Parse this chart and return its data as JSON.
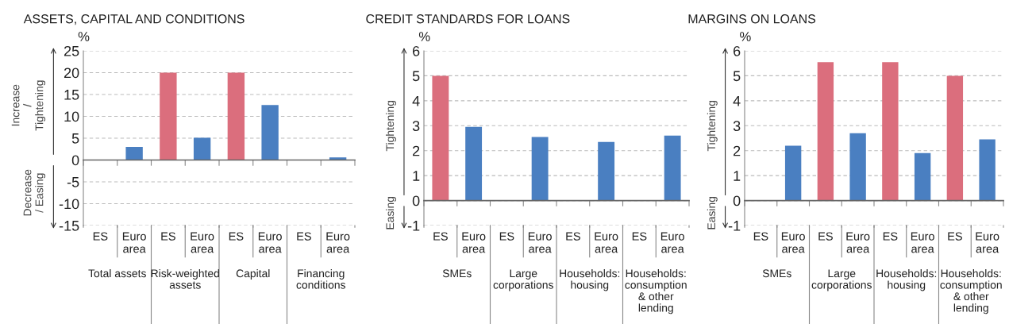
{
  "chart_data": [
    {
      "type": "bar",
      "title": "ASSETS, CAPITAL AND CONDITIONS",
      "ylabel": "%",
      "categories": [
        "ES",
        "Euro area",
        "ES",
        "Euro area",
        "ES",
        "Euro area",
        "ES",
        "Euro area"
      ],
      "values": [
        0,
        3.0,
        20,
        5.1,
        20,
        12.6,
        0,
        0.6
      ],
      "colors": [
        "#db6e7d",
        "#4a7fc1",
        "#db6e7d",
        "#4a7fc1",
        "#db6e7d",
        "#4a7fc1",
        "#db6e7d",
        "#4a7fc1"
      ],
      "ylim": [
        -15,
        25
      ],
      "yticks": [
        -15,
        -10,
        -5,
        0,
        5,
        10,
        15,
        20,
        25
      ],
      "grid": "y",
      "annotations": [
        "Total assets",
        "Risk-weighted assets",
        "Capital",
        "Financing conditions",
        "Increase / Tightening",
        "Decrease / Easing"
      ]
    },
    {
      "type": "bar",
      "title": "CREDIT STANDARDS FOR LOANS",
      "ylabel": "%",
      "categories": [
        "ES",
        "Euro area",
        "ES",
        "Euro area",
        "ES",
        "Euro area",
        "ES",
        "Euro area"
      ],
      "values": [
        5.0,
        2.95,
        0,
        2.55,
        0,
        2.35,
        0,
        2.6
      ],
      "colors": [
        "#db6e7d",
        "#4a7fc1",
        "#db6e7d",
        "#4a7fc1",
        "#db6e7d",
        "#4a7fc1",
        "#db6e7d",
        "#4a7fc1"
      ],
      "ylim": [
        -1,
        6
      ],
      "yticks": [
        -1,
        0,
        1,
        2,
        3,
        4,
        5,
        6
      ],
      "grid": "y",
      "annotations": [
        "SMEs",
        "Large corporations",
        "Households: housing",
        "Households: consumption & other lending",
        "Tightening",
        "Easing"
      ]
    },
    {
      "type": "bar",
      "title": "MARGINS ON LOANS",
      "ylabel": "%",
      "categories": [
        "ES",
        "Euro area",
        "ES",
        "Euro area",
        "ES",
        "Euro area",
        "ES",
        "Euro area"
      ],
      "values": [
        0,
        2.2,
        5.55,
        2.7,
        5.55,
        1.9,
        5.0,
        2.45
      ],
      "colors": [
        "#db6e7d",
        "#4a7fc1",
        "#db6e7d",
        "#4a7fc1",
        "#db6e7d",
        "#4a7fc1",
        "#db6e7d",
        "#4a7fc1"
      ],
      "ylim": [
        -1,
        6
      ],
      "yticks": [
        -1,
        0,
        1,
        2,
        3,
        4,
        5,
        6
      ],
      "grid": "y",
      "annotations": [
        "SMEs",
        "Large corporations",
        "Households: housing",
        "Households: consumption & other lending",
        "Tightening",
        "Easing"
      ]
    }
  ]
}
